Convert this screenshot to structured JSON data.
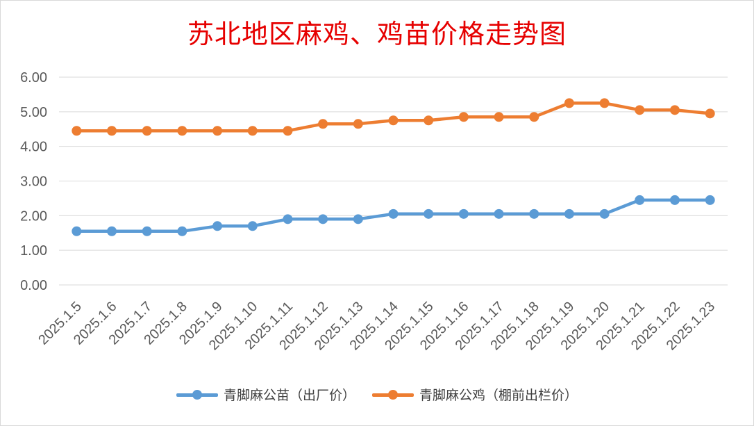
{
  "chart_data": {
    "type": "line",
    "title": "苏北地区麻鸡、鸡苗价格走势图",
    "categories": [
      "2025.1.5",
      "2025.1.6",
      "2025.1.7",
      "2025.1.8",
      "2025.1.9",
      "2025.1.10",
      "2025.1.11",
      "2025.1.12",
      "2025.1.13",
      "2025.1.14",
      "2025.1.15",
      "2025.1.16",
      "2025.1.17",
      "2025.1.18",
      "2025.1.19",
      "2025.1.20",
      "2025.1.21",
      "2025.1.22",
      "2025.1.23"
    ],
    "yticks": [
      "0.00",
      "1.00",
      "2.00",
      "3.00",
      "4.00",
      "5.00",
      "6.00"
    ],
    "ylim": [
      0,
      6
    ],
    "grid": true,
    "legend_position": "bottom",
    "series": [
      {
        "name": "青脚麻公苗（出厂价）",
        "color": "#5b9bd5",
        "values": [
          1.55,
          1.55,
          1.55,
          1.55,
          1.7,
          1.7,
          1.9,
          1.9,
          1.9,
          2.05,
          2.05,
          2.05,
          2.05,
          2.05,
          2.05,
          2.05,
          2.45,
          2.45,
          2.45
        ]
      },
      {
        "name": "青脚麻公鸡（棚前出栏价）",
        "color": "#ed7d31",
        "values": [
          4.45,
          4.45,
          4.45,
          4.45,
          4.45,
          4.45,
          4.45,
          4.65,
          4.65,
          4.75,
          4.75,
          4.85,
          4.85,
          4.85,
          5.25,
          5.25,
          5.05,
          5.05,
          4.95
        ]
      }
    ]
  }
}
